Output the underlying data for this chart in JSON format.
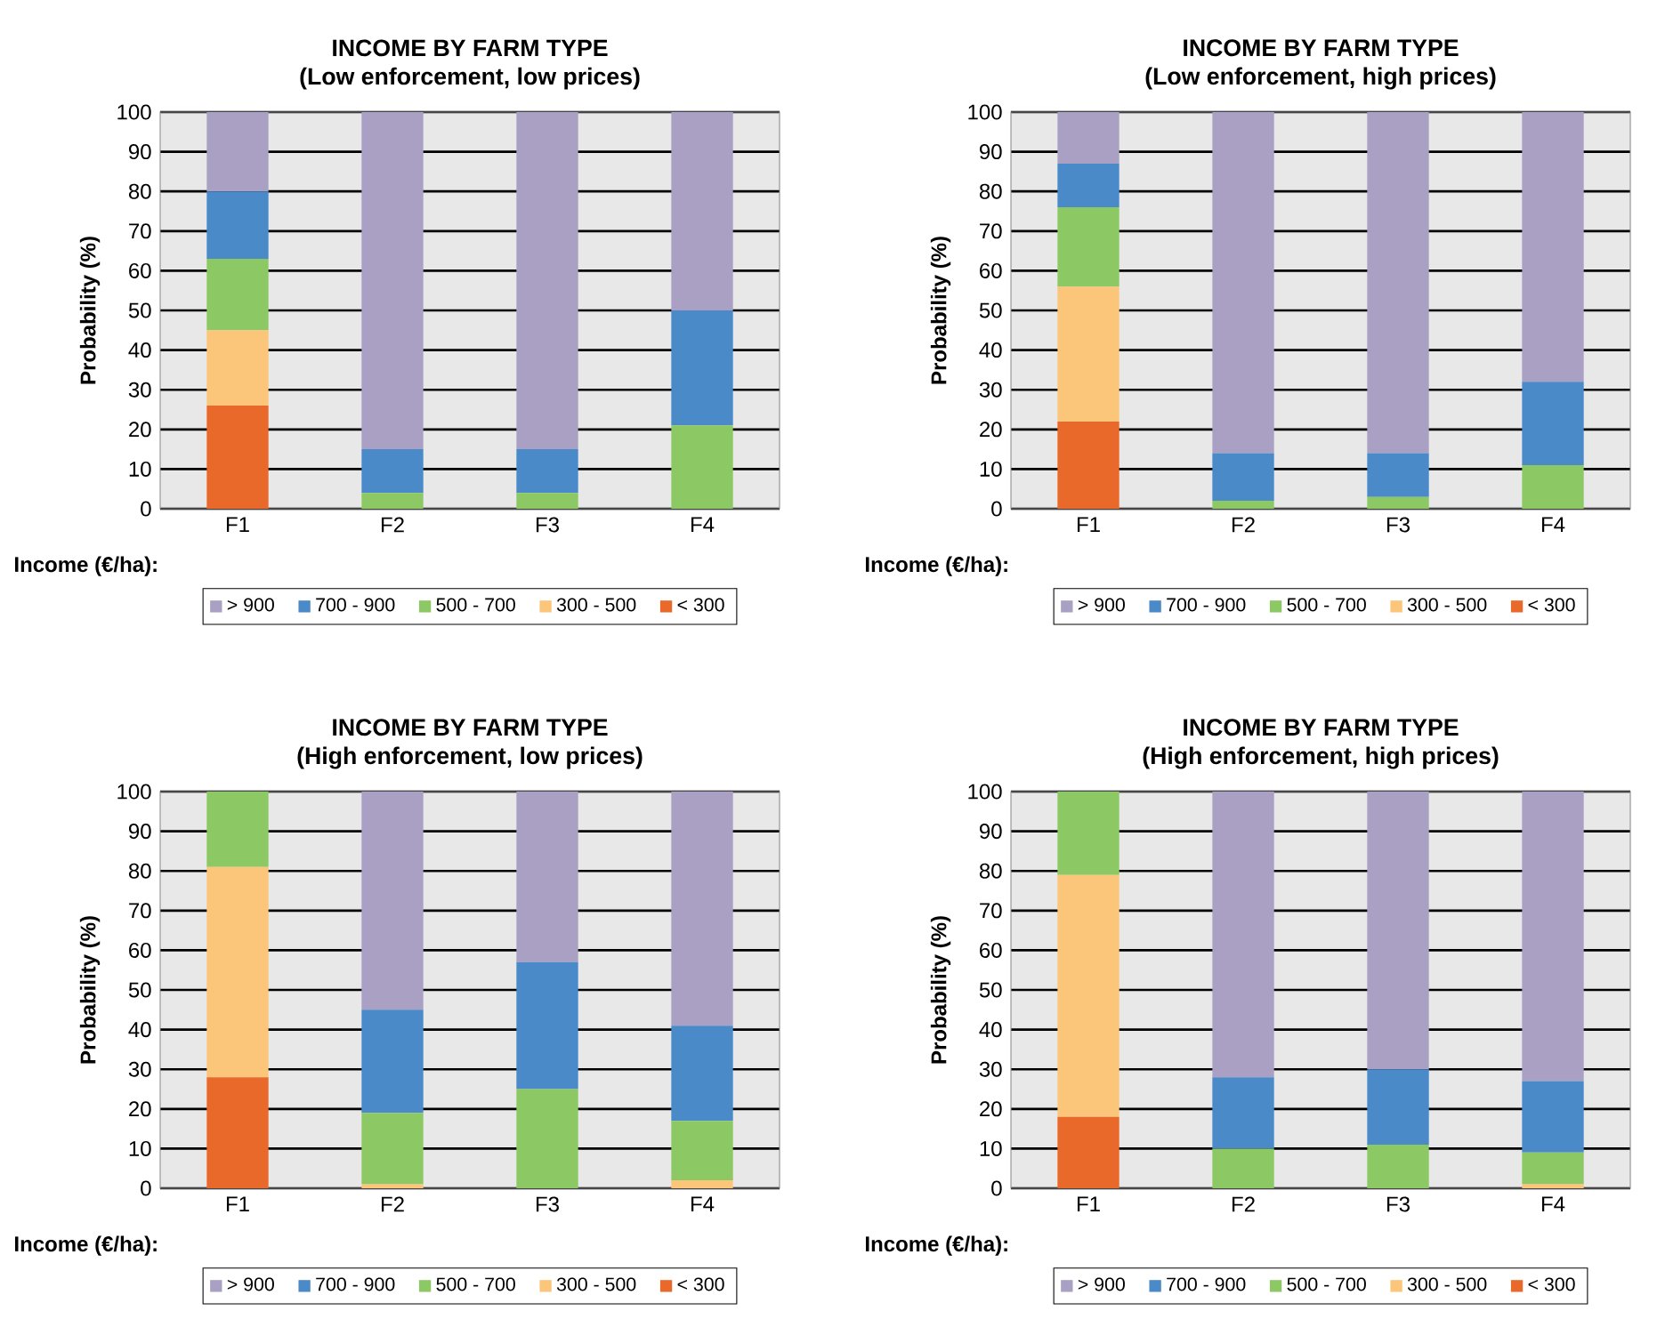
{
  "chart_data": [
    {
      "type": "bar",
      "title": "INCOME BY FARM TYPE",
      "subtitle": "(Low enforcement, low prices)",
      "ylabel": "Probability (%)",
      "legend_title": "Income (€/ha):",
      "categories": [
        "F1",
        "F2",
        "F3",
        "F4"
      ],
      "stacked": true,
      "ylim": [
        0,
        100
      ],
      "yticks": [
        0,
        10,
        20,
        30,
        40,
        50,
        60,
        70,
        80,
        90,
        100
      ],
      "grid": "y",
      "legend": "bottom",
      "series": [
        {
          "name": "< 300",
          "color": "#e8692a",
          "values": [
            26,
            0,
            0,
            0
          ]
        },
        {
          "name": "300 - 500",
          "color": "#fbc57a",
          "values": [
            19,
            0,
            0,
            0
          ]
        },
        {
          "name": "500 - 700",
          "color": "#8cc864",
          "values": [
            18,
            4,
            4,
            21
          ]
        },
        {
          "name": "700 - 900",
          "color": "#4a8ac8",
          "values": [
            17,
            11,
            11,
            29
          ]
        },
        {
          "name": "> 900",
          "color": "#a9a0c4",
          "values": [
            20,
            85,
            85,
            50
          ]
        }
      ]
    },
    {
      "type": "bar",
      "title": "INCOME BY FARM TYPE",
      "subtitle": "(Low enforcement, high prices)",
      "ylabel": "Probability (%)",
      "legend_title": "Income (€/ha):",
      "categories": [
        "F1",
        "F2",
        "F3",
        "F4"
      ],
      "stacked": true,
      "ylim": [
        0,
        100
      ],
      "yticks": [
        0,
        10,
        20,
        30,
        40,
        50,
        60,
        70,
        80,
        90,
        100
      ],
      "grid": "y",
      "legend": "bottom",
      "series": [
        {
          "name": "< 300",
          "color": "#e8692a",
          "values": [
            22,
            0,
            0,
            0
          ]
        },
        {
          "name": "300 - 500",
          "color": "#fbc57a",
          "values": [
            34,
            0,
            0,
            0
          ]
        },
        {
          "name": "500 - 700",
          "color": "#8cc864",
          "values": [
            20,
            2,
            3,
            11
          ]
        },
        {
          "name": "700 - 900",
          "color": "#4a8ac8",
          "values": [
            11,
            12,
            11,
            21
          ]
        },
        {
          "name": "> 900",
          "color": "#a9a0c4",
          "values": [
            13,
            86,
            86,
            68
          ]
        }
      ]
    },
    {
      "type": "bar",
      "title": "INCOME BY FARM TYPE",
      "subtitle": "(High enforcement, low prices)",
      "ylabel": "Probability (%)",
      "legend_title": "Income (€/ha):",
      "categories": [
        "F1",
        "F2",
        "F3",
        "F4"
      ],
      "stacked": true,
      "ylim": [
        0,
        100
      ],
      "yticks": [
        0,
        10,
        20,
        30,
        40,
        50,
        60,
        70,
        80,
        90,
        100
      ],
      "grid": "y",
      "legend": "bottom",
      "series": [
        {
          "name": "< 300",
          "color": "#e8692a",
          "values": [
            28,
            0,
            0,
            0
          ]
        },
        {
          "name": "300 - 500",
          "color": "#fbc57a",
          "values": [
            53,
            1,
            0,
            2
          ]
        },
        {
          "name": "500 - 700",
          "color": "#8cc864",
          "values": [
            19,
            18,
            25,
            15
          ]
        },
        {
          "name": "700 - 900",
          "color": "#4a8ac8",
          "values": [
            0,
            26,
            32,
            24
          ]
        },
        {
          "name": "> 900",
          "color": "#a9a0c4",
          "values": [
            0,
            55,
            43,
            59
          ]
        }
      ]
    },
    {
      "type": "bar",
      "title": "INCOME BY FARM TYPE",
      "subtitle": "(High enforcement, high prices)",
      "ylabel": "Probability (%)",
      "legend_title": "Income (€/ha):",
      "categories": [
        "F1",
        "F2",
        "F3",
        "F4"
      ],
      "stacked": true,
      "ylim": [
        0,
        100
      ],
      "yticks": [
        0,
        10,
        20,
        30,
        40,
        50,
        60,
        70,
        80,
        90,
        100
      ],
      "grid": "y",
      "legend": "bottom",
      "series": [
        {
          "name": "< 300",
          "color": "#e8692a",
          "values": [
            18,
            0,
            0,
            0
          ]
        },
        {
          "name": "300 - 500",
          "color": "#fbc57a",
          "values": [
            61,
            0,
            0,
            1
          ]
        },
        {
          "name": "500 - 700",
          "color": "#8cc864",
          "values": [
            21,
            10,
            11,
            8
          ]
        },
        {
          "name": "700 - 900",
          "color": "#4a8ac8",
          "values": [
            0,
            18,
            19,
            18
          ]
        },
        {
          "name": "> 900",
          "color": "#a9a0c4",
          "values": [
            0,
            72,
            70,
            73
          ]
        }
      ]
    }
  ]
}
